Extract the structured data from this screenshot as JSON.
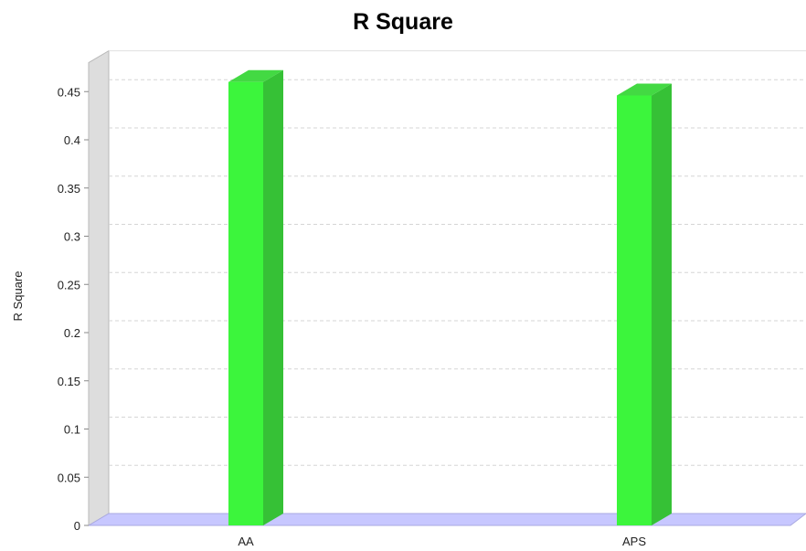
{
  "chart_data": {
    "type": "bar",
    "title": "R Square",
    "xlabel": "",
    "ylabel": "R Square",
    "categories": [
      "AA",
      "APS"
    ],
    "values": [
      0.46,
      0.446
    ],
    "ylim": [
      0,
      0.48
    ],
    "yticks": [
      0,
      0.05,
      0.1,
      0.15,
      0.2,
      0.25,
      0.3,
      0.35,
      0.4,
      0.45
    ],
    "ytick_labels": [
      "0",
      "0.05",
      "0.1",
      "0.15",
      "0.2",
      "0.25",
      "0.3",
      "0.35",
      "0.4",
      "0.45"
    ],
    "grid": true,
    "style": "3d",
    "colors": {
      "bar_front": "#3cf53c",
      "bar_side": "#36c136",
      "bar_top": "#43d943",
      "floor": "#c7c7ff",
      "left_wall": "#dddddd",
      "grid": "#d5d5d5"
    }
  }
}
